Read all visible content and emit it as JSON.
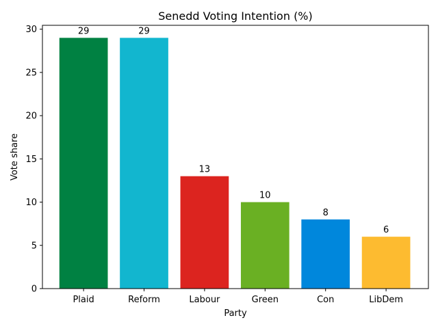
{
  "chart_data": {
    "type": "bar",
    "title": "Senedd Voting Intention (%)",
    "xlabel": "Party",
    "ylabel": "Vote share",
    "categories": [
      "Plaid",
      "Reform",
      "Labour",
      "Green",
      "Con",
      "LibDem"
    ],
    "values": [
      29,
      29,
      13,
      10,
      8,
      6
    ],
    "data_labels": [
      "29",
      "29",
      "13",
      "10",
      "8",
      "6"
    ],
    "colors": [
      "#008142",
      "#12B6CF",
      "#DC241F",
      "#6AB023",
      "#0087DC",
      "#FDBB30"
    ],
    "ylim": [
      0,
      30.45
    ],
    "yticks": [
      0,
      5,
      10,
      15,
      20,
      25,
      30
    ],
    "ytick_labels": [
      "0",
      "5",
      "10",
      "15",
      "20",
      "25",
      "30"
    ],
    "grid": false,
    "legend": "none"
  }
}
